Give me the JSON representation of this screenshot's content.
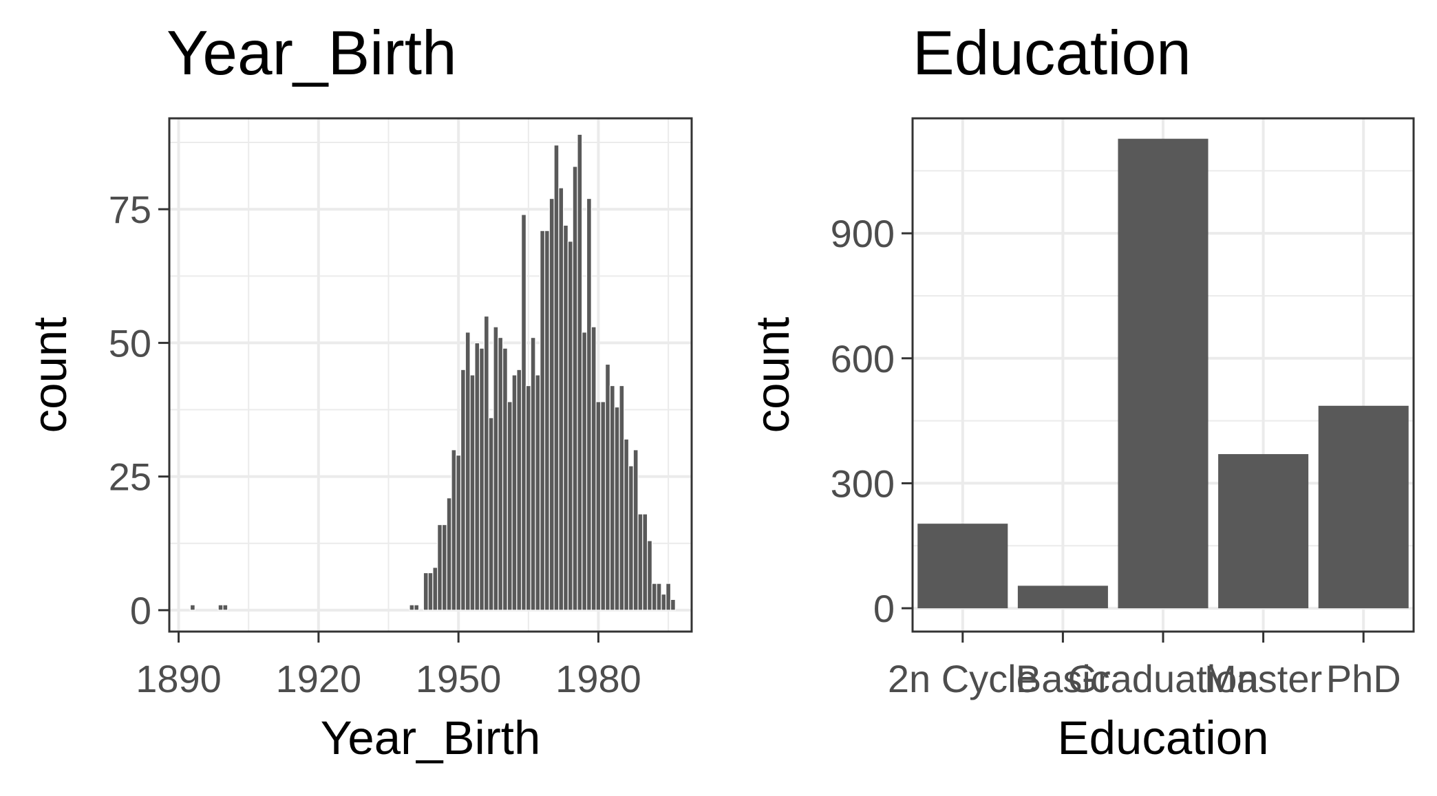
{
  "chart_data": [
    {
      "type": "bar",
      "title": "Year_Birth",
      "xlabel": "Year_Birth",
      "ylabel": "count",
      "xlim": [
        1888,
        2000
      ],
      "ylim": [
        -4,
        92
      ],
      "x_ticks": [
        1890,
        1920,
        1950,
        1980
      ],
      "y_ticks": [
        0,
        25,
        50,
        75
      ],
      "bin_width": 1,
      "bins": [
        [
          1893,
          1
        ],
        [
          1899,
          1
        ],
        [
          1900,
          1
        ],
        [
          1940,
          1
        ],
        [
          1941,
          1
        ],
        [
          1943,
          7
        ],
        [
          1944,
          7
        ],
        [
          1945,
          8
        ],
        [
          1946,
          16
        ],
        [
          1947,
          16
        ],
        [
          1948,
          21
        ],
        [
          1949,
          30
        ],
        [
          1950,
          29
        ],
        [
          1951,
          45
        ],
        [
          1952,
          52
        ],
        [
          1953,
          44
        ],
        [
          1954,
          50
        ],
        [
          1955,
          49
        ],
        [
          1956,
          55
        ],
        [
          1957,
          36
        ],
        [
          1958,
          53
        ],
        [
          1959,
          51
        ],
        [
          1960,
          49
        ],
        [
          1961,
          39
        ],
        [
          1962,
          44
        ],
        [
          1963,
          45
        ],
        [
          1964,
          74
        ],
        [
          1965,
          42
        ],
        [
          1966,
          51
        ],
        [
          1967,
          44
        ],
        [
          1968,
          71
        ],
        [
          1969,
          71
        ],
        [
          1970,
          77
        ],
        [
          1971,
          87
        ],
        [
          1972,
          79
        ],
        [
          1973,
          72
        ],
        [
          1974,
          69
        ],
        [
          1975,
          83
        ],
        [
          1976,
          89
        ],
        [
          1977,
          52
        ],
        [
          1978,
          77
        ],
        [
          1979,
          53
        ],
        [
          1980,
          39
        ],
        [
          1981,
          39
        ],
        [
          1982,
          46
        ],
        [
          1983,
          42
        ],
        [
          1984,
          38
        ],
        [
          1985,
          42
        ],
        [
          1986,
          32
        ],
        [
          1987,
          27
        ],
        [
          1988,
          30
        ],
        [
          1989,
          18
        ],
        [
          1990,
          18
        ],
        [
          1991,
          13
        ],
        [
          1992,
          5
        ],
        [
          1993,
          5
        ],
        [
          1994,
          3
        ],
        [
          1995,
          5
        ],
        [
          1996,
          2
        ]
      ]
    },
    {
      "type": "bar",
      "title": "Education",
      "xlabel": "Education",
      "ylabel": "count",
      "ylim": [
        -56,
        1176
      ],
      "y_ticks": [
        0,
        300,
        600,
        900
      ],
      "categories": [
        "2n Cycle",
        "Basic",
        "Graduation",
        "Master",
        "PhD"
      ],
      "values": [
        203,
        54,
        1127,
        370,
        486
      ]
    }
  ]
}
